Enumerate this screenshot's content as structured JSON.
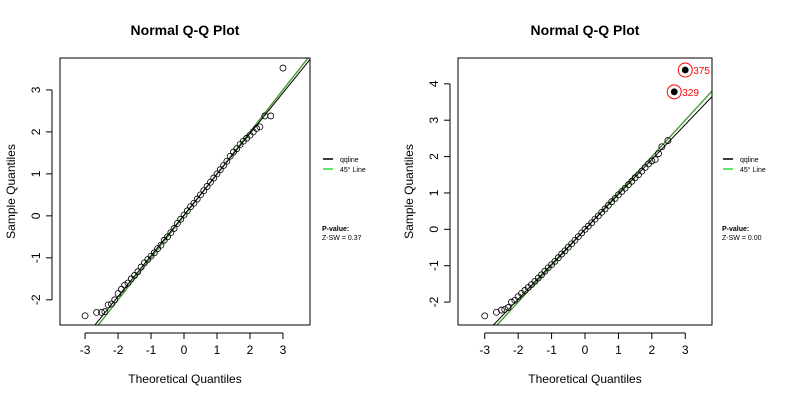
{
  "chart_data": [
    {
      "type": "scatter",
      "title": "Normal Q-Q Plot",
      "xlabel": "Theoretical Quantiles",
      "ylabel": "Sample Quantiles",
      "xlim": [
        -3.76,
        3.82
      ],
      "ylim": [
        -2.6,
        3.76
      ],
      "xticks": [
        -3,
        -2,
        -1,
        0,
        1,
        2,
        3
      ],
      "yticks": [
        -2,
        -1,
        0,
        1,
        2,
        3
      ],
      "grid": false,
      "legend_placement": "right",
      "legend": [
        {
          "label": "qqline",
          "color": "#000000"
        },
        {
          "label": "45° Line",
          "color": "#33dd33"
        }
      ],
      "lines": {
        "qqline": {
          "slope": 0.97,
          "intercept": 0.02,
          "color": "#000000"
        },
        "line45": {
          "slope": 1.0,
          "intercept": 0.0,
          "color": "#4a9a3a"
        }
      },
      "pvalue_title": "P-value:",
      "pvalue_text": "Z-SW = 0.37",
      "points": [
        [
          -3.0,
          -2.38
        ],
        [
          -2.65,
          -2.3
        ],
        [
          -2.5,
          -2.3
        ],
        [
          -2.4,
          -2.28
        ],
        [
          -2.3,
          -2.12
        ],
        [
          -2.2,
          -2.1
        ],
        [
          -2.1,
          -2.0
        ],
        [
          -2.0,
          -1.85
        ],
        [
          -1.9,
          -1.75
        ],
        [
          -1.8,
          -1.65
        ],
        [
          -1.7,
          -1.6
        ],
        [
          -1.6,
          -1.5
        ],
        [
          -1.5,
          -1.42
        ],
        [
          -1.4,
          -1.33
        ],
        [
          -1.3,
          -1.22
        ],
        [
          -1.2,
          -1.12
        ],
        [
          -1.1,
          -1.04
        ],
        [
          -1.0,
          -0.96
        ],
        [
          -0.9,
          -0.88
        ],
        [
          -0.8,
          -0.78
        ],
        [
          -0.7,
          -0.7
        ],
        [
          -0.6,
          -0.58
        ],
        [
          -0.5,
          -0.5
        ],
        [
          -0.4,
          -0.4
        ],
        [
          -0.3,
          -0.3
        ],
        [
          -0.2,
          -0.18
        ],
        [
          -0.1,
          -0.08
        ],
        [
          0.0,
          0.02
        ],
        [
          0.1,
          0.12
        ],
        [
          0.2,
          0.22
        ],
        [
          0.3,
          0.3
        ],
        [
          0.4,
          0.4
        ],
        [
          0.5,
          0.5
        ],
        [
          0.6,
          0.6
        ],
        [
          0.7,
          0.7
        ],
        [
          0.8,
          0.8
        ],
        [
          0.9,
          0.9
        ],
        [
          1.0,
          1.0
        ],
        [
          1.1,
          1.1
        ],
        [
          1.2,
          1.2
        ],
        [
          1.3,
          1.3
        ],
        [
          1.4,
          1.42
        ],
        [
          1.5,
          1.52
        ],
        [
          1.6,
          1.6
        ],
        [
          1.7,
          1.7
        ],
        [
          1.8,
          1.78
        ],
        [
          1.9,
          1.85
        ],
        [
          2.0,
          1.92
        ],
        [
          2.1,
          2.0
        ],
        [
          2.2,
          2.08
        ],
        [
          2.3,
          2.12
        ],
        [
          2.45,
          2.38
        ],
        [
          2.63,
          2.38
        ],
        [
          3.0,
          3.52
        ]
      ],
      "highlighted": []
    },
    {
      "type": "scatter",
      "title": "Normal Q-Q Plot",
      "xlabel": "Theoretical Quantiles",
      "ylabel": "Sample Quantiles",
      "xlim": [
        -3.8,
        3.8
      ],
      "ylim": [
        -2.63,
        4.71
      ],
      "xticks": [
        -3,
        -2,
        -1,
        0,
        1,
        2,
        3
      ],
      "yticks": [
        -2,
        -1,
        0,
        1,
        2,
        3,
        4
      ],
      "grid": false,
      "legend_placement": "right",
      "legend": [
        {
          "label": "qqline",
          "color": "#000000"
        },
        {
          "label": "45° Line",
          "color": "#33dd33"
        }
      ],
      "lines": {
        "qqline": {
          "slope": 0.96,
          "intercept": 0.0,
          "color": "#000000"
        },
        "line45": {
          "slope": 1.0,
          "intercept": 0.0,
          "color": "#4a9a3a"
        }
      },
      "pvalue_title": "P-value:",
      "pvalue_text": "Z-SW = 0.00",
      "points": [
        [
          -3.0,
          -2.38
        ],
        [
          -2.65,
          -2.28
        ],
        [
          -2.5,
          -2.22
        ],
        [
          -2.4,
          -2.2
        ],
        [
          -2.3,
          -2.15
        ],
        [
          -2.2,
          -2.0
        ],
        [
          -2.1,
          -1.95
        ],
        [
          -2.0,
          -1.85
        ],
        [
          -1.9,
          -1.76
        ],
        [
          -1.8,
          -1.68
        ],
        [
          -1.7,
          -1.6
        ],
        [
          -1.6,
          -1.52
        ],
        [
          -1.5,
          -1.43
        ],
        [
          -1.4,
          -1.34
        ],
        [
          -1.3,
          -1.25
        ],
        [
          -1.2,
          -1.15
        ],
        [
          -1.1,
          -1.06
        ],
        [
          -1.0,
          -0.97
        ],
        [
          -0.9,
          -0.88
        ],
        [
          -0.8,
          -0.78
        ],
        [
          -0.7,
          -0.68
        ],
        [
          -0.6,
          -0.59
        ],
        [
          -0.5,
          -0.49
        ],
        [
          -0.4,
          -0.4
        ],
        [
          -0.3,
          -0.3
        ],
        [
          -0.2,
          -0.2
        ],
        [
          -0.1,
          -0.1
        ],
        [
          0.0,
          0.0
        ],
        [
          0.1,
          0.09
        ],
        [
          0.2,
          0.18
        ],
        [
          0.3,
          0.28
        ],
        [
          0.4,
          0.37
        ],
        [
          0.5,
          0.47
        ],
        [
          0.6,
          0.56
        ],
        [
          0.7,
          0.66
        ],
        [
          0.8,
          0.76
        ],
        [
          0.9,
          0.85
        ],
        [
          1.0,
          0.95
        ],
        [
          1.1,
          1.04
        ],
        [
          1.2,
          1.13
        ],
        [
          1.3,
          1.23
        ],
        [
          1.4,
          1.32
        ],
        [
          1.5,
          1.42
        ],
        [
          1.6,
          1.5
        ],
        [
          1.7,
          1.6
        ],
        [
          1.8,
          1.7
        ],
        [
          1.9,
          1.8
        ],
        [
          2.0,
          1.88
        ],
        [
          2.1,
          1.92
        ],
        [
          2.2,
          2.08
        ],
        [
          2.3,
          2.27
        ],
        [
          2.48,
          2.44
        ],
        [
          2.67,
          3.78
        ],
        [
          3.0,
          4.38
        ]
      ],
      "highlighted": [
        {
          "label": "375",
          "x": 3.0,
          "y": 4.38,
          "color": "#ff0000"
        },
        {
          "label": "329",
          "x": 2.67,
          "y": 3.78,
          "color": "#ff0000"
        }
      ]
    }
  ]
}
